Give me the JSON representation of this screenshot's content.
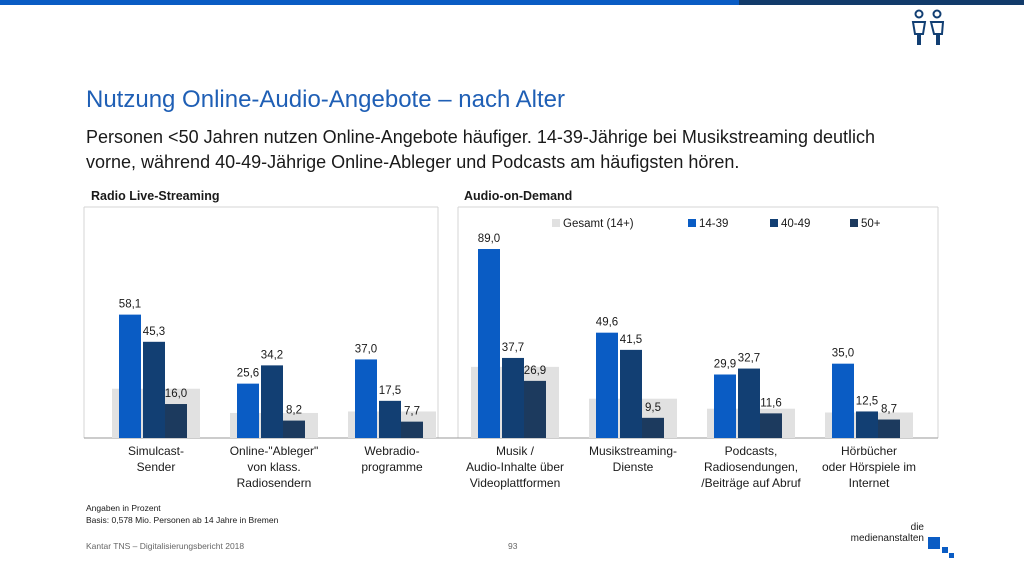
{
  "header": {
    "title": "Nutzung Online-Audio-Angebote – nach Alter",
    "subtitle": "Personen <50 Jahren nutzen Online-Angebote häufiger. 14-39-Jährige bei Musikstreaming deutlich vorne, während 40-49-Jährige Online-Ableger und Podcasts am häufigsten hören."
  },
  "panels": {
    "left": "Radio Live-Streaming",
    "right": "Audio-on-Demand"
  },
  "chart_data": {
    "type": "bar",
    "categories": [
      [
        "Simulcast-",
        "Sender"
      ],
      [
        "Online-\"Ableger\"",
        "von klass.",
        "Radiosendern"
      ],
      [
        "Webradio-",
        "programme"
      ],
      [
        "Musik /",
        "Audio-Inhalte über",
        "Videoplattformen"
      ],
      [
        "Musikstreaming-",
        "Dienste"
      ],
      [
        "Podcasts,",
        "Radiosendungen,",
        "/Beiträge auf Abruf"
      ],
      [
        "Hörbücher",
        "oder Hörspiele im",
        "Internet"
      ]
    ],
    "series": [
      {
        "name": "Gesamt (14+)",
        "color": "#e1e1e1",
        "values": [
          23.2,
          11.8,
          12.5,
          33.5,
          18.5,
          13.8,
          12.0
        ],
        "labeled": false
      },
      {
        "name": "14-39",
        "color": "#0a5cc4",
        "values": [
          58.1,
          25.6,
          37.0,
          89.0,
          49.6,
          29.9,
          35.0
        ],
        "labeled": true
      },
      {
        "name": "40-49",
        "color": "#123f73",
        "values": [
          45.3,
          34.2,
          17.5,
          37.7,
          41.5,
          32.7,
          12.5
        ],
        "labeled": true
      },
      {
        "name": "50+",
        "color": "#1c3a5e",
        "values": [
          16.0,
          8.2,
          7.7,
          26.9,
          9.5,
          11.6,
          8.7
        ],
        "labeled": true
      }
    ],
    "value_labels": [
      [
        "58,1",
        "45,3",
        "16,0"
      ],
      [
        "25,6",
        "34,2",
        "8,2"
      ],
      [
        "37,0",
        "17,5",
        "7,7"
      ],
      [
        "89,0",
        "37,7",
        "26,9"
      ],
      [
        "49,6",
        "41,5",
        "9,5"
      ],
      [
        "29,9",
        "32,7",
        "11,6"
      ],
      [
        "35,0",
        "12,5",
        "8,7"
      ]
    ],
    "groups": [
      {
        "name": "Radio Live-Streaming",
        "categories": [
          0,
          1,
          2
        ]
      },
      {
        "name": "Audio-on-Demand",
        "categories": [
          3,
          4,
          5,
          6
        ]
      }
    ],
    "ylim": [
      0,
      100
    ],
    "grid": false,
    "legend_placement": "top-right"
  },
  "notes": {
    "line1": "Angaben in Prozent",
    "line2": "Basis: 0,578 Mio. Personen ab 14 Jahre in Bremen"
  },
  "footer": {
    "source": "Kantar TNS – Digitalisierungsbericht 2018",
    "page": "93",
    "logo_line1": "die",
    "logo_line2": "medienanstalten"
  }
}
